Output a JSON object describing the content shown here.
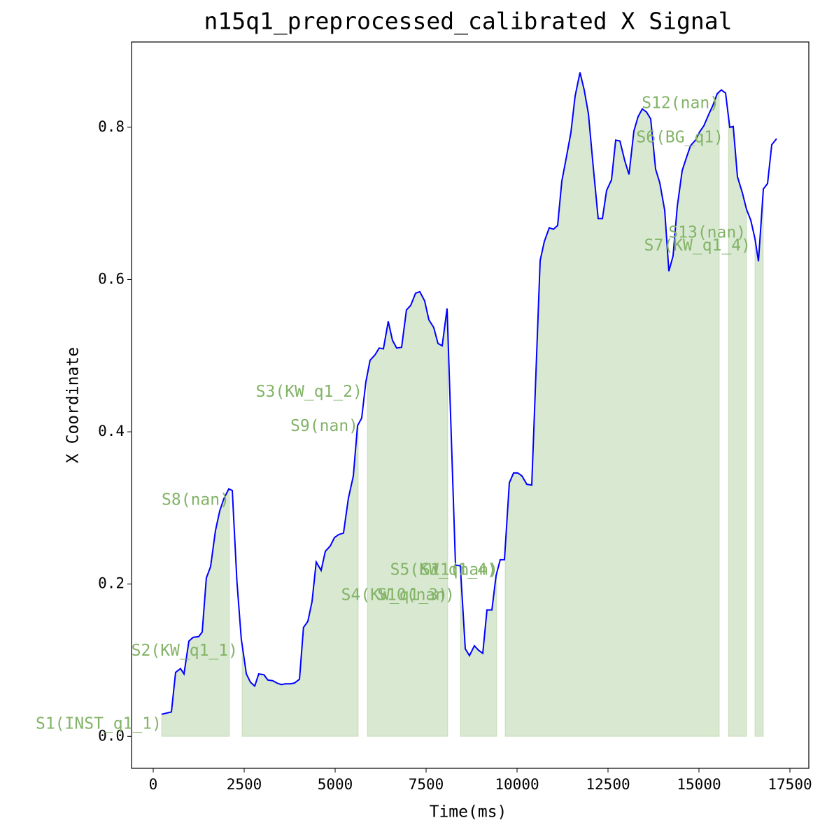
{
  "chart_data": {
    "type": "line",
    "title": "n15q1_preprocessed_calibrated X Signal",
    "x_label": "Time(ms)",
    "y_label": "X Coordinate",
    "xlim": [
      -596,
      18019
    ],
    "ylim": [
      -0.042,
      0.912
    ],
    "xticks": [
      0,
      2500,
      5000,
      7500,
      10000,
      12500,
      15000,
      17500
    ],
    "yticks": [
      {
        "value": 0,
        "label": "0.0"
      },
      0.2,
      0.4,
      0.6,
      0.8
    ],
    "series": [
      {
        "color": "#0000ff",
        "x": [
          230,
          500,
          615,
          750,
          846,
          980,
          1096,
          1250,
          1346,
          1460,
          1577,
          1710,
          1827,
          1940,
          2077,
          2173,
          2300,
          2420,
          2560,
          2673,
          2790,
          2900,
          3040,
          3150,
          3290,
          3400,
          3520,
          3630,
          3770,
          3880,
          4020,
          4130,
          4250,
          4365,
          4480,
          4615,
          4730,
          4865,
          4980,
          5096,
          5230,
          5365,
          5500,
          5615,
          5730,
          5846,
          5960,
          6096,
          6211,
          6327,
          6460,
          6577,
          6692,
          6827,
          6960,
          7077,
          7210,
          7327,
          7460,
          7577,
          7710,
          7827,
          7942,
          8077,
          8308,
          8440,
          8577,
          8692,
          8827,
          8942,
          9058,
          9173,
          9308,
          9423,
          9538,
          9654,
          9788,
          9904,
          10020,
          10135,
          10270,
          10404,
          10635,
          10750,
          10885,
          11000,
          11115,
          11230,
          11365,
          11480,
          11596,
          11730,
          11846,
          11961,
          12096,
          12230,
          12346,
          12461,
          12596,
          12711,
          12827,
          12961,
          13077,
          13211,
          13327,
          13442,
          13558,
          13673,
          13808,
          13923,
          14058,
          14173,
          14288,
          14404,
          14538,
          14654,
          14769,
          14904,
          15019,
          15135,
          15269,
          15385,
          15500,
          15615,
          15731,
          15846,
          15942,
          16058,
          16192,
          16308,
          16423,
          16538,
          16635,
          16770,
          16885,
          17000,
          17135
        ],
        "values": [
          0.029,
          0.032,
          0.084,
          0.089,
          0.082,
          0.125,
          0.13,
          0.131,
          0.137,
          0.208,
          0.223,
          0.27,
          0.296,
          0.312,
          0.325,
          0.323,
          0.204,
          0.128,
          0.082,
          0.071,
          0.066,
          0.082,
          0.081,
          0.074,
          0.073,
          0.07,
          0.068,
          0.069,
          0.069,
          0.07,
          0.075,
          0.143,
          0.151,
          0.177,
          0.229,
          0.218,
          0.243,
          0.25,
          0.261,
          0.265,
          0.267,
          0.313,
          0.342,
          0.408,
          0.418,
          0.466,
          0.494,
          0.501,
          0.51,
          0.509,
          0.545,
          0.52,
          0.51,
          0.511,
          0.56,
          0.566,
          0.582,
          0.584,
          0.572,
          0.547,
          0.537,
          0.516,
          0.513,
          0.562,
          0.225,
          0.224,
          0.115,
          0.106,
          0.119,
          0.113,
          0.109,
          0.166,
          0.166,
          0.211,
          0.232,
          0.232,
          0.333,
          0.346,
          0.346,
          0.342,
          0.331,
          0.33,
          0.625,
          0.65,
          0.668,
          0.666,
          0.671,
          0.729,
          0.763,
          0.793,
          0.841,
          0.872,
          0.849,
          0.818,
          0.747,
          0.68,
          0.68,
          0.717,
          0.731,
          0.783,
          0.782,
          0.756,
          0.738,
          0.795,
          0.814,
          0.824,
          0.82,
          0.811,
          0.745,
          0.727,
          0.691,
          0.611,
          0.631,
          0.696,
          0.743,
          0.76,
          0.776,
          0.783,
          0.794,
          0.802,
          0.817,
          0.829,
          0.844,
          0.849,
          0.845,
          0.8,
          0.801,
          0.735,
          0.714,
          0.692,
          0.678,
          0.654,
          0.624,
          0.719,
          0.726,
          0.777,
          0.785
        ]
      }
    ],
    "segments": [
      [
        231,
        2096
      ],
      [
        2442,
        5635
      ],
      [
        5885,
        8096
      ],
      [
        8442,
        9442
      ],
      [
        9673,
        15558
      ],
      [
        15808,
        16308
      ],
      [
        16538,
        16769
      ]
    ],
    "segment_color": "#82b366",
    "annotations": [
      {
        "text": "S1(INST_q1_1)",
        "x": 231,
        "y": 0.016
      },
      {
        "text": "S2(KW_q1_1)",
        "x": 2327,
        "y": 0.112
      },
      {
        "text": "S8(nan)",
        "x": 2096,
        "y": 0.31
      },
      {
        "text": "S3(KW_q1_2)",
        "x": 5750,
        "y": 0.452
      },
      {
        "text": "S9(nan)",
        "x": 5635,
        "y": 0.407
      },
      {
        "text": "S4(KW_q1_3)",
        "x": 8096,
        "y": 0.185
      },
      {
        "text": "S10(nan)",
        "x": 8288,
        "y": 0.185
      },
      {
        "text": "S5(KW_q1_4)",
        "x": 9442,
        "y": 0.218
      },
      {
        "text": "S11(nan)",
        "x": 9480,
        "y": 0.218
      },
      {
        "text": "S12(nan)",
        "x": 15558,
        "y": 0.831
      },
      {
        "text": "S6(BG_q1)",
        "x": 15673,
        "y": 0.786
      },
      {
        "text": "S13(nan)",
        "x": 16290,
        "y": 0.661
      },
      {
        "text": "S7(KW_q1_4)",
        "x": 16423,
        "y": 0.644
      }
    ]
  }
}
